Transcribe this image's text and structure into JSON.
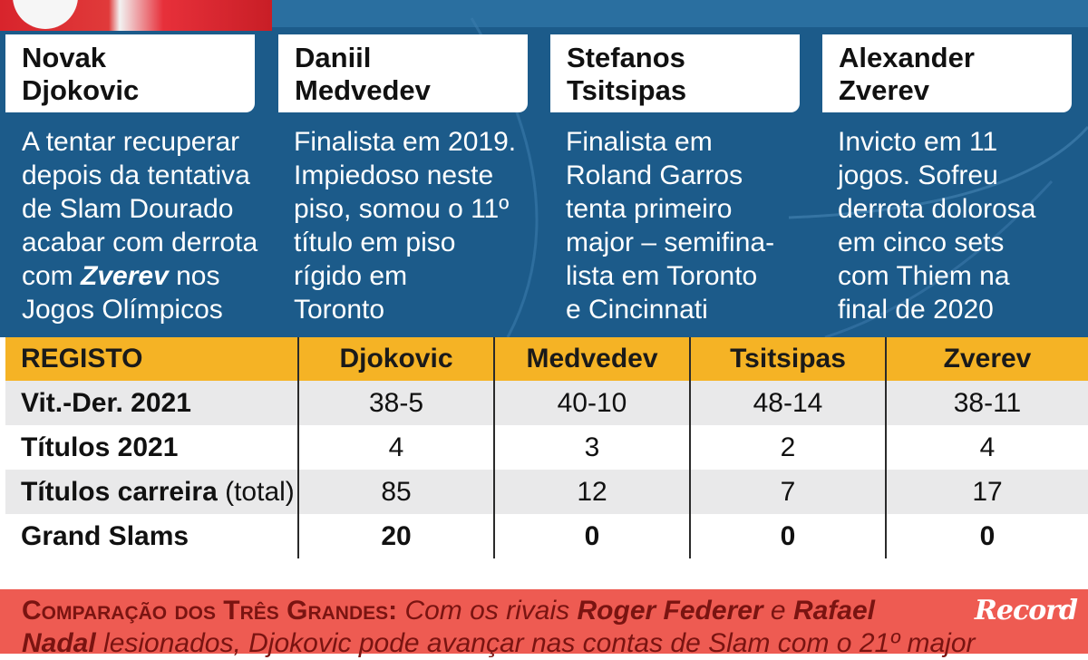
{
  "players": [
    {
      "first": "Novak",
      "last": "Djokovic",
      "desc_lines": [
        "A tentar recuperar",
        "depois da tentativa",
        "de Slam Dourado",
        "acabar com derrota"
      ],
      "desc_pre": "com ",
      "desc_emph": "Zverev",
      "desc_post": " nos",
      "desc_last": "Jogos Olímpicos"
    },
    {
      "first": "Daniil",
      "last": "Medvedev",
      "desc_lines": [
        "Finalista em 2019.",
        "Impiedoso neste",
        "piso, somou o 11º",
        "título em piso",
        "rígido em",
        "Toronto"
      ]
    },
    {
      "first": "Stefanos",
      "last": "Tsitsipas",
      "desc_lines": [
        "Finalista em",
        "Roland Garros",
        "tenta primeiro",
        "major – semifina-",
        "lista em Toronto",
        "e Cincinnati"
      ]
    },
    {
      "first": "Alexander",
      "last": "Zverev",
      "desc_lines": [
        "Invicto em 11",
        "jogos. Sofreu",
        "derrota dolorosa",
        "em cinco sets",
        "com Thiem na",
        "final de 2020"
      ]
    }
  ],
  "table": {
    "header": [
      "REGISTO",
      "Djokovic",
      "Medvedev",
      "Tsitsipas",
      "Zverev"
    ],
    "rows": [
      {
        "label": "Vit.-Der. 2021",
        "label_suffix": "",
        "values": [
          "38-5",
          "40-10",
          "48-14",
          "38-11"
        ]
      },
      {
        "label": "Títulos 2021",
        "label_suffix": "",
        "values": [
          "4",
          "3",
          "2",
          "4"
        ]
      },
      {
        "label": "Títulos carreira",
        "label_suffix": " (total)",
        "values": [
          "85",
          "12",
          "7",
          "17"
        ]
      },
      {
        "label": "Grand Slams",
        "label_suffix": "",
        "values": [
          "20",
          "0",
          "0",
          "0"
        ]
      }
    ]
  },
  "footer": {
    "caps": "Comparação dos Três Grandes:",
    "t1": " Com os rivais ",
    "b1": "Roger Federer",
    "t2": " e ",
    "b2": "Rafael",
    "line2_b": "Nadal",
    "line2_t": " lesionados, Djokovic pode avançar nas contas de Slam com o 21º major"
  },
  "logo": "Record",
  "colors": {
    "blue": "#1c5b8a",
    "header_yellow": "#f5b325",
    "footer_red": "#ee5b52"
  }
}
